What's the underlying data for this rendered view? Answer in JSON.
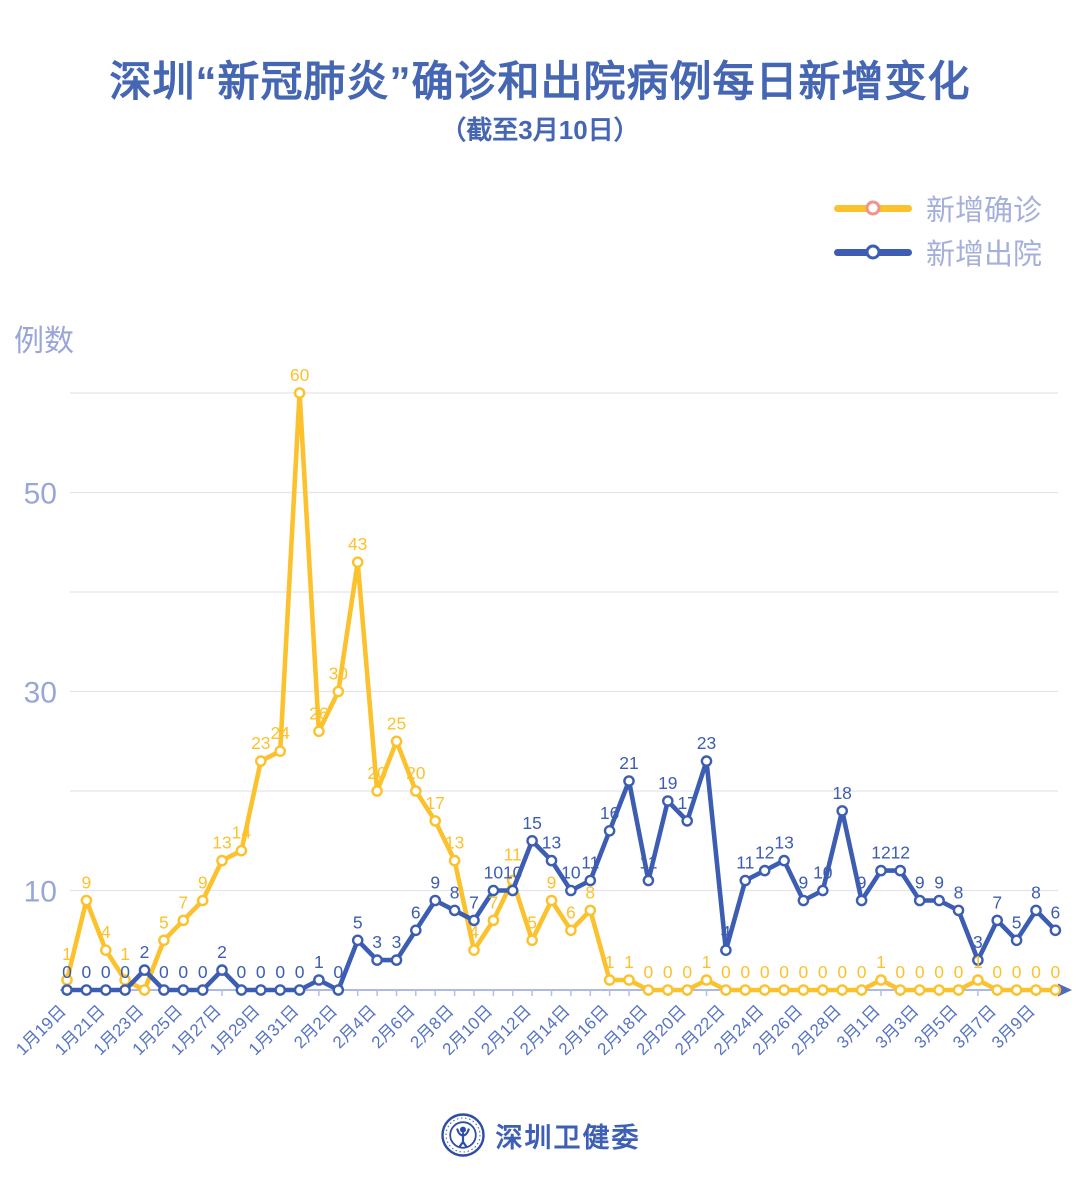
{
  "header": {
    "title": "深圳“新冠肺炎”确诊和出院病例每日新增变化",
    "subtitle": "（截至3月10日）"
  },
  "legend": {
    "items": [
      {
        "id": "confirmed",
        "label": "新增确诊",
        "line_color": "#FCC22E",
        "marker_ring": "#F0928E"
      },
      {
        "id": "discharged",
        "label": "新增出院",
        "line_color": "#3C5DB2",
        "marker_ring": "#3C5DB2"
      }
    ]
  },
  "footer": {
    "logo": "shenzhen-health-commission-emblem",
    "name": "深圳卫健委"
  },
  "chart_data": {
    "type": "line",
    "title": "深圳“新冠肺炎”确诊和出院病例每日新增变化（截至3月10日）",
    "xlabel": "",
    "ylabel": "例数",
    "ylim": [
      0,
      62
    ],
    "grid": true,
    "legend_position": "top-right",
    "x": [
      "1月19日",
      "1月20日",
      "1月21日",
      "1月22日",
      "1月23日",
      "1月24日",
      "1月25日",
      "1月26日",
      "1月27日",
      "1月28日",
      "1月29日",
      "1月30日",
      "1月31日",
      "2月1日",
      "2月2日",
      "2月3日",
      "2月4日",
      "2月5日",
      "2月6日",
      "2月7日",
      "2月8日",
      "2月9日",
      "2月10日",
      "2月11日",
      "2月12日",
      "2月13日",
      "2月14日",
      "2月15日",
      "2月16日",
      "2月17日",
      "2月18日",
      "2月19日",
      "2月20日",
      "2月21日",
      "2月22日",
      "2月23日",
      "2月24日",
      "2月25日",
      "2月26日",
      "2月27日",
      "2月28日",
      "2月29日",
      "3月1日",
      "3月2日",
      "3月3日",
      "3月4日",
      "3月5日",
      "3月6日",
      "3月7日",
      "3月8日",
      "3月9日",
      "3月10日"
    ],
    "x_tick_shown_every": 2,
    "y_ticks_labeled": [
      10,
      30,
      50
    ],
    "gridlines_y": [
      10,
      20,
      30,
      40,
      50,
      60
    ],
    "series": [
      {
        "id": "confirmed",
        "name": "新增确诊",
        "color": "#FCC22E",
        "label_color": "#FCC22E",
        "values": [
          1,
          9,
          4,
          1,
          0,
          5,
          7,
          9,
          13,
          14,
          23,
          24,
          60,
          26,
          30,
          43,
          20,
          25,
          20,
          17,
          13,
          4,
          7,
          11,
          5,
          9,
          6,
          8,
          1,
          1,
          0,
          0,
          0,
          1,
          0,
          0,
          0,
          0,
          0,
          0,
          0,
          0,
          1,
          0,
          0,
          0,
          0,
          1,
          0,
          0,
          0,
          0
        ],
        "hidden_label_indices": [
          4
        ]
      },
      {
        "id": "discharged",
        "name": "新增出院",
        "color": "#3C5DB2",
        "label_color": "#3C5DB2",
        "values": [
          0,
          0,
          0,
          0,
          2,
          0,
          0,
          0,
          2,
          0,
          0,
          0,
          0,
          1,
          0,
          5,
          3,
          3,
          6,
          9,
          8,
          7,
          10,
          10,
          15,
          13,
          10,
          11,
          16,
          21,
          11,
          19,
          17,
          23,
          4,
          11,
          12,
          13,
          9,
          10,
          18,
          9,
          12,
          12,
          9,
          9,
          8,
          3,
          7,
          5,
          8,
          6
        ],
        "hidden_label_indices": []
      }
    ],
    "style": {
      "title_color": "#4566B2",
      "grid_color": "#E3E4EC",
      "axis_color": "#AEB9E4",
      "tick_color": "#B4BEE6",
      "arrow_color": "#4E6BBD",
      "x_label_color": "#5673C4",
      "y_label_color": "#9AA6D8",
      "legend_text_color": "#A5AFDC",
      "footer_color": "#3D5FB5"
    }
  }
}
